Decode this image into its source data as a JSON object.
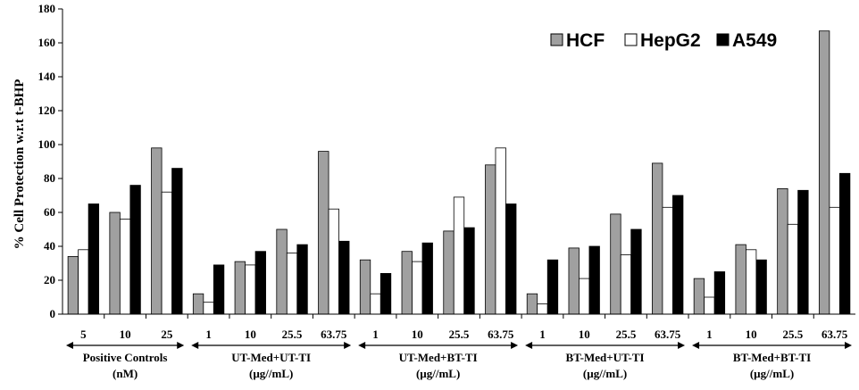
{
  "chart_data": {
    "type": "bar",
    "ylabel": "% Cell Protection w.r.t t-BHP",
    "ylim": [
      0,
      180
    ],
    "yticks": [
      0,
      20,
      40,
      60,
      80,
      100,
      120,
      140,
      160,
      180
    ],
    "grid": false,
    "legend_position": "top-right",
    "groups": [
      {
        "label_line1": "Positive Controls",
        "label_line2": "(nM)",
        "categories": [
          "5",
          "10",
          "25"
        ]
      },
      {
        "label_line1": "UT-Med+UT-TI",
        "label_line2": "(µg//mL)",
        "categories": [
          "1",
          "10",
          "25.5",
          "63.75"
        ]
      },
      {
        "label_line1": "UT-Med+BT-TI",
        "label_line2": "(µg//mL)",
        "categories": [
          "1",
          "10",
          "25.5",
          "63.75"
        ]
      },
      {
        "label_line1": "BT-Med+UT-TI",
        "label_line2": "(µg//mL)",
        "categories": [
          "1",
          "10",
          "25.5",
          "63.75"
        ]
      },
      {
        "label_line1": "BT-Med+BT-TI",
        "label_line2": "(µg//mL)",
        "categories": [
          "1",
          "10",
          "25.5",
          "63.75"
        ]
      }
    ],
    "series": [
      {
        "name": "HCF",
        "color": "#a0a0a0",
        "values": [
          34,
          60,
          98,
          12,
          31,
          50,
          96,
          32,
          37,
          49,
          88,
          12,
          39,
          59,
          89,
          21,
          41,
          74,
          167
        ]
      },
      {
        "name": "HepG2",
        "color": "#ffffff",
        "values": [
          38,
          56,
          72,
          7,
          29,
          36,
          62,
          12,
          31,
          69,
          98,
          6,
          21,
          35,
          63,
          10,
          38,
          53,
          63
        ]
      },
      {
        "name": "A549",
        "color": "#000000",
        "values": [
          65,
          76,
          86,
          29,
          37,
          41,
          43,
          24,
          42,
          51,
          65,
          32,
          40,
          50,
          70,
          25,
          32,
          73,
          83
        ]
      }
    ]
  }
}
